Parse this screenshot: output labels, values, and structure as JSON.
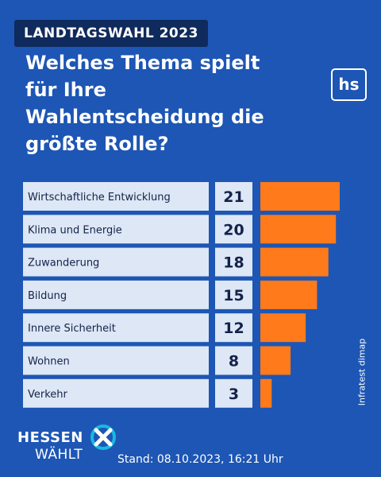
{
  "header": {
    "tag": "LANDTAGSWAHL 2023",
    "title_lines": [
      "Welches Thema spielt",
      "für Ihre",
      "Wahlentscheidung die",
      "größte Rolle?"
    ],
    "logo_text": "hs"
  },
  "chart_data": {
    "type": "bar",
    "orientation": "horizontal",
    "categories": [
      "Wirtschaftliche Entwicklung",
      "Klima und Energie",
      "Zuwanderung",
      "Bildung",
      "Innere Sicherheit",
      "Wohnen",
      "Verkehr"
    ],
    "values": [
      21,
      20,
      18,
      15,
      12,
      8,
      3
    ],
    "value_labels": [
      "21",
      "20",
      "18",
      "15",
      "12",
      "8",
      "3"
    ],
    "bar_color": "#ff7a1a",
    "label_bg": "#dde7f5",
    "xlim": [
      0,
      21
    ]
  },
  "source": "Infratest dimap",
  "footer": {
    "brand_line1": "HESSEN",
    "brand_line2": "WÄHLT",
    "stand": "Stand: 08.10.2023, 16:21 Uhr"
  },
  "colors": {
    "background": "#1d56b4",
    "tag_bg": "#0f2a5c",
    "accent_cyan": "#19c3e6"
  }
}
